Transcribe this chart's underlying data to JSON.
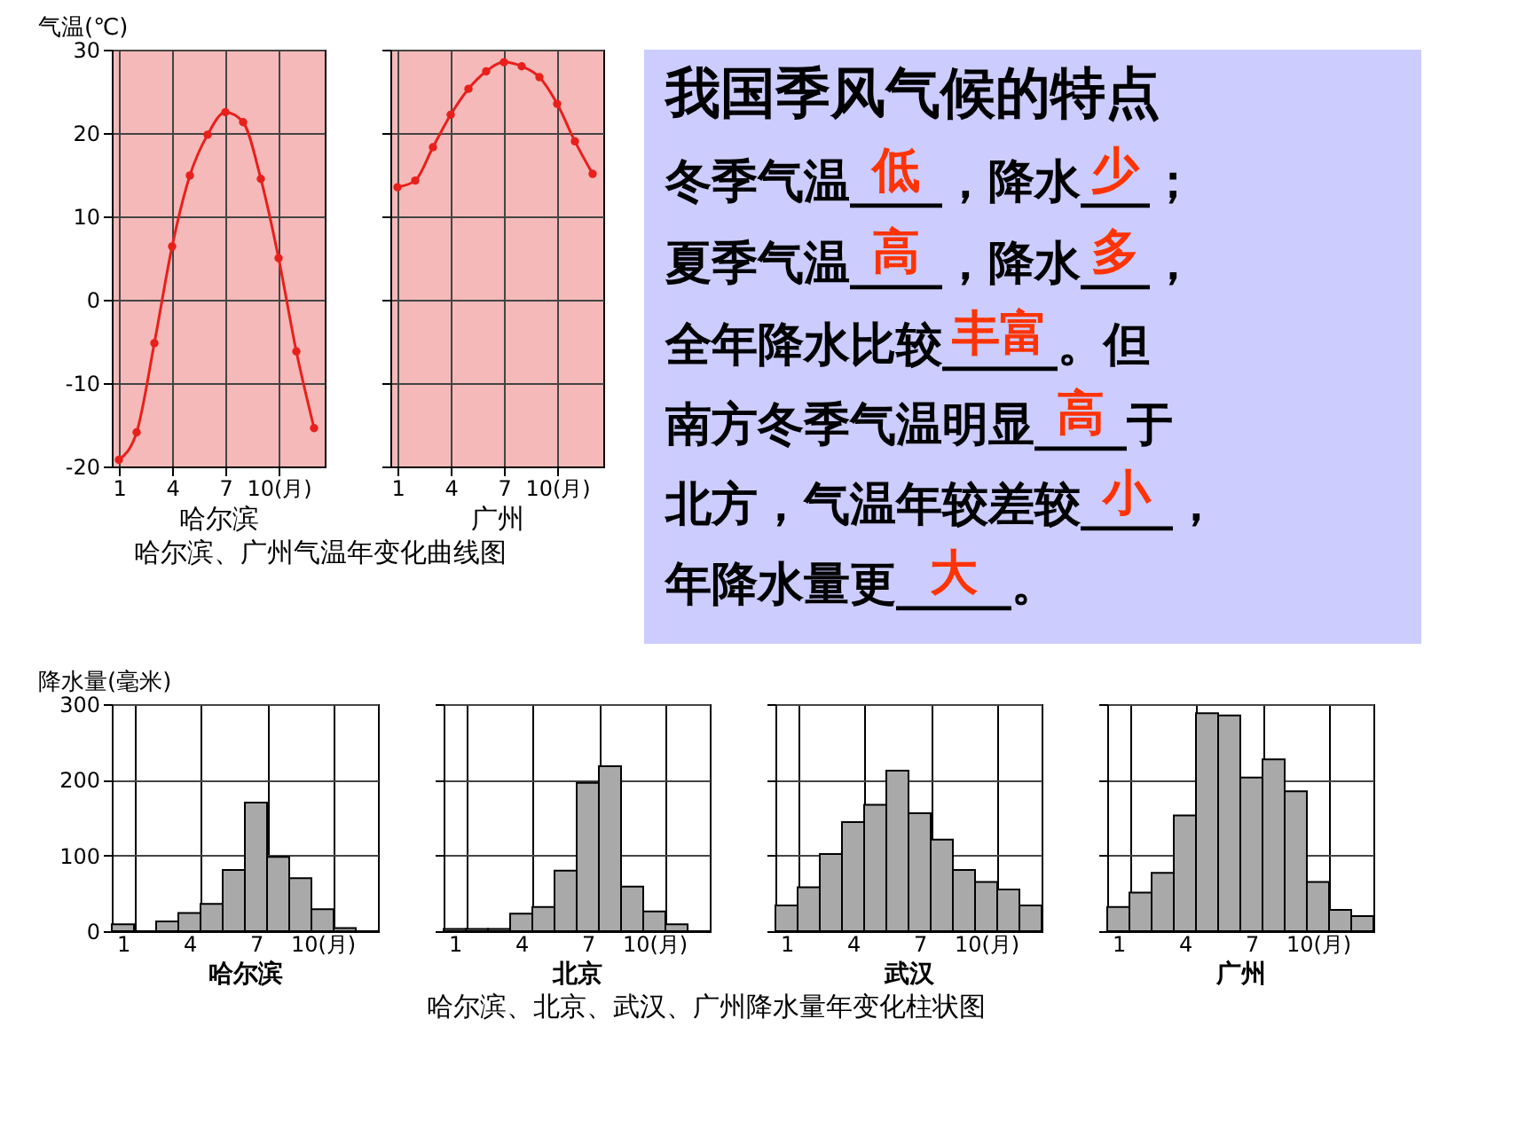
{
  "chart_data": [
    {
      "type": "line",
      "ylabel": "气温(℃)",
      "xlabel": "哈尔滨",
      "x": [
        1,
        2,
        3,
        4,
        5,
        6,
        7,
        8,
        9,
        10,
        11,
        12
      ],
      "series": [
        {
          "color": "#e8201c",
          "values": [
            -19.2,
            -15.9,
            -5.2,
            6.4,
            14.9,
            19.8,
            22.5,
            21.3,
            14.5,
            5.0,
            -6.2,
            -15.4
          ]
        }
      ],
      "xlim": [
        0.6,
        12.6
      ],
      "xticks": [
        1,
        4,
        7,
        {
          "value": 10,
          "label": "10(月)"
        }
      ],
      "ylim": [
        -20,
        30
      ],
      "yticks": [
        -20,
        -10,
        0,
        10,
        20,
        30
      ],
      "grid": true,
      "marker": "circle",
      "annotations": [
        "哈尔滨、广州气温年变化曲线图"
      ]
    },
    {
      "type": "line",
      "xlabel": "广州",
      "x": [
        1,
        2,
        3,
        4,
        5,
        6,
        7,
        8,
        9,
        10,
        11,
        12
      ],
      "series": [
        {
          "color": "#e8201c",
          "values": [
            13.5,
            14.3,
            18.3,
            22.2,
            25.3,
            27.4,
            28.5,
            28.0,
            26.7,
            23.5,
            19.0,
            15.1
          ]
        }
      ],
      "xlim": [
        0.6,
        12.6
      ],
      "xticks": [
        1,
        4,
        7,
        {
          "value": 10,
          "label": "10(月)"
        }
      ],
      "ylim": [
        -20,
        30
      ],
      "yticks": [
        -20,
        -10,
        0,
        10,
        20,
        30
      ],
      "grid": true,
      "marker": "circle",
      "tick_labels": "x"
    },
    {
      "type": "other",
      "title": "我国季风气候的特点",
      "annotations": [
        "冬季气温____，降水___；",
        "夏季气温____，降水___，",
        "全年降水比较_____。但",
        "南方冬季气温明显____于",
        "北方，气温年较差较____，",
        "年降水量更_____。",
        "低",
        "少",
        "高",
        "多",
        "丰富",
        "高",
        "小",
        "大"
      ]
    },
    {
      "type": "bar",
      "ylabel": "降水量(毫米)",
      "xlabel": "哈尔滨",
      "categories": [
        "1",
        null,
        null,
        "4",
        null,
        null,
        "7",
        null,
        null,
        "10(月)",
        null,
        null
      ],
      "series": [
        {
          "color": "#a9a9a9",
          "values": [
            9,
            0,
            13,
            24,
            36,
            81,
            170,
            98,
            70,
            29,
            4,
            0
          ]
        }
      ],
      "ylim": [
        0,
        300
      ],
      "yticks": [
        0,
        100,
        200,
        300
      ],
      "grid": true,
      "annotations": [
        "哈尔滨、北京、武汉、广州降水量年变化柱状图"
      ]
    },
    {
      "type": "bar",
      "xlabel": "北京",
      "categories": [
        "1",
        null,
        null,
        "4",
        null,
        null,
        "7",
        null,
        null,
        "10(月)",
        null,
        null
      ],
      "series": [
        {
          "color": "#a9a9a9",
          "values": [
            3,
            3,
            3,
            23,
            32,
            80,
            196,
            218,
            59,
            26,
            9,
            0
          ]
        }
      ],
      "ylim": [
        0,
        300
      ],
      "yticks": [
        0,
        100,
        200,
        300
      ],
      "grid": true,
      "tick_labels": "x"
    },
    {
      "type": "bar",
      "xlabel": "武汉",
      "categories": [
        "1",
        null,
        null,
        "4",
        null,
        null,
        "7",
        null,
        null,
        "10(月)",
        null,
        null
      ],
      "series": [
        {
          "color": "#a9a9a9",
          "values": [
            34,
            58,
            102,
            144,
            167,
            212,
            156,
            121,
            81,
            65,
            55,
            34
          ]
        }
      ],
      "ylim": [
        0,
        300
      ],
      "yticks": [
        0,
        100,
        200,
        300
      ],
      "grid": true,
      "tick_labels": "x"
    },
    {
      "type": "bar",
      "xlabel": "广州",
      "categories": [
        "1",
        null,
        null,
        "4",
        null,
        null,
        "7",
        null,
        null,
        "10(月)",
        null,
        null
      ],
      "series": [
        {
          "color": "#a9a9a9",
          "values": [
            32,
            51,
            77,
            153,
            288,
            285,
            203,
            227,
            185,
            65,
            28,
            20
          ]
        }
      ],
      "ylim": [
        0,
        300
      ],
      "yticks": [
        0,
        100,
        200,
        300
      ],
      "grid": true,
      "tick_labels": "x"
    }
  ]
}
